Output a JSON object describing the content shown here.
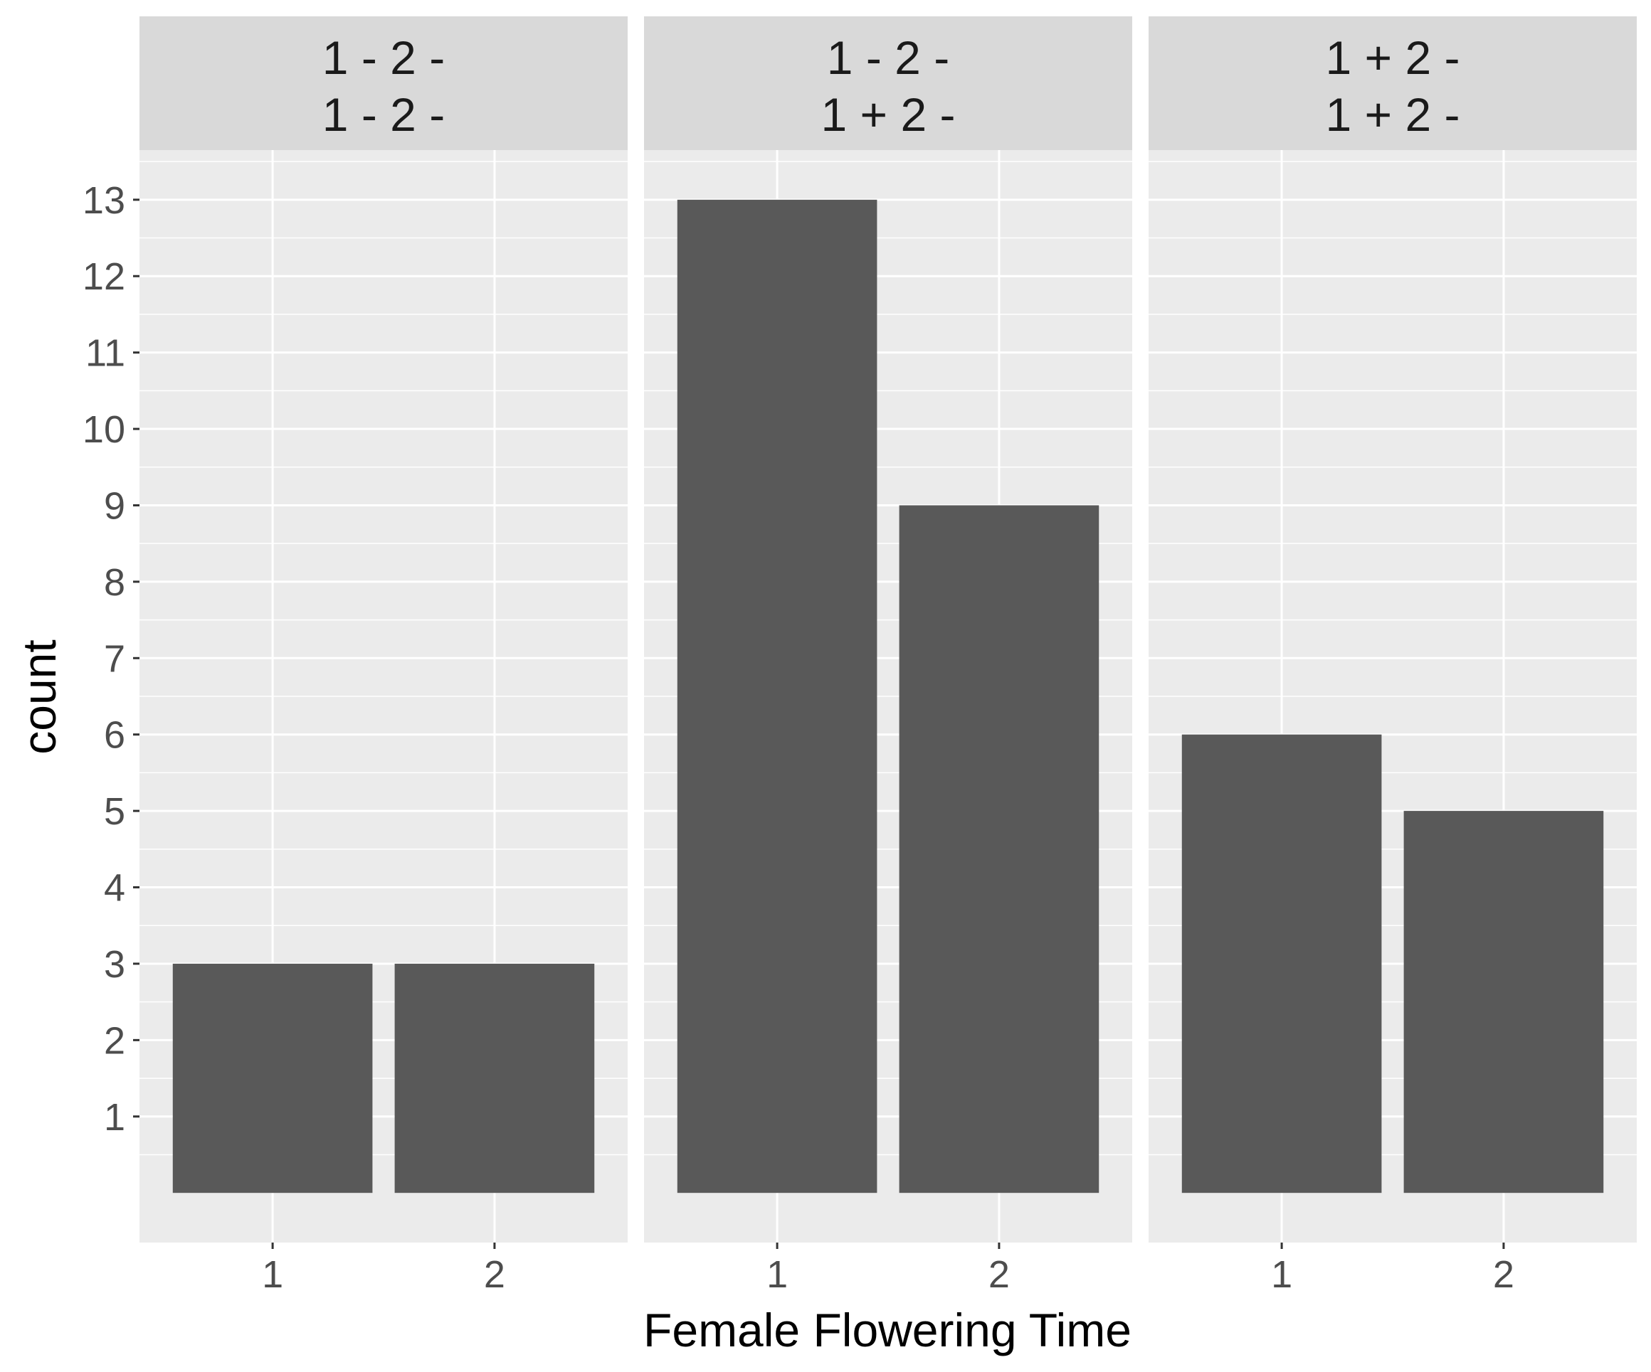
{
  "chart_data": {
    "type": "bar",
    "xlabel": "Female Flowering Time",
    "ylabel": "count",
    "categories": [
      "1",
      "2"
    ],
    "yticks": [
      1,
      2,
      3,
      4,
      5,
      6,
      7,
      8,
      9,
      10,
      11,
      12,
      13
    ],
    "ylim": [
      -0.65,
      13.65
    ],
    "grid": true,
    "facets": [
      {
        "label_line1": "1 - 2 -",
        "label_line2": "1 - 2 -",
        "values": [
          3,
          3
        ]
      },
      {
        "label_line1": "1 - 2 -",
        "label_line2": "1 + 2 -",
        "values": [
          13,
          9
        ]
      },
      {
        "label_line1": "1 + 2 -",
        "label_line2": "1 + 2 -",
        "values": [
          6,
          5
        ]
      }
    ],
    "colors": {
      "bar": "#595959",
      "panel_background": "#ebebeb",
      "strip_background": "#d9d9d9",
      "grid": "#ffffff",
      "tick": "#333333"
    }
  }
}
